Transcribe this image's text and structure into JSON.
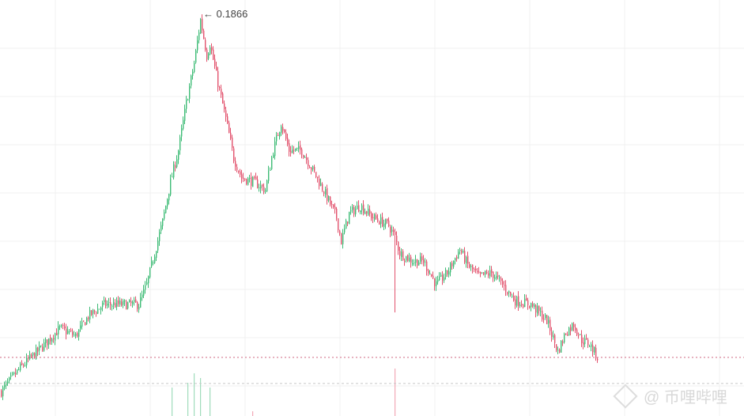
{
  "chart_data": {
    "type": "candlestick",
    "title": "",
    "xlabel": "",
    "ylabel": "",
    "ylim": [
      0.0105,
      0.1936
    ],
    "grid": true,
    "max_label": "← 0.1866",
    "max_value": 0.1866,
    "current_price_line": 0.0363,
    "secondary_price_line": 0.0248,
    "key_closes": [
      [
        0,
        0.0213
      ],
      [
        12,
        0.0317
      ],
      [
        25,
        0.0404
      ],
      [
        37,
        0.0491
      ],
      [
        47,
        0.0457
      ],
      [
        55,
        0.0544
      ],
      [
        65,
        0.0596
      ],
      [
        75,
        0.0596
      ],
      [
        87,
        0.0596
      ],
      [
        92,
        0.0683
      ],
      [
        97,
        0.0822
      ],
      [
        102,
        0.0961
      ],
      [
        107,
        0.1135
      ],
      [
        112,
        0.1274
      ],
      [
        117,
        0.1483
      ],
      [
        122,
        0.1657
      ],
      [
        126,
        0.1849
      ],
      [
        130,
        0.1692
      ],
      [
        132,
        0.1744
      ],
      [
        137,
        0.157
      ],
      [
        142,
        0.1414
      ],
      [
        147,
        0.124
      ],
      [
        152,
        0.1153
      ],
      [
        160,
        0.1135
      ],
      [
        167,
        0.11
      ],
      [
        172,
        0.1274
      ],
      [
        177,
        0.1396
      ],
      [
        182,
        0.1274
      ],
      [
        190,
        0.1274
      ],
      [
        197,
        0.1187
      ],
      [
        205,
        0.1083
      ],
      [
        212,
        0.0979
      ],
      [
        215,
        0.0874
      ],
      [
        220,
        0.0996
      ],
      [
        227,
        0.1031
      ],
      [
        235,
        0.0979
      ],
      [
        245,
        0.0944
      ],
      [
        249,
        0.0892
      ],
      [
        252,
        0.0822
      ],
      [
        260,
        0.0787
      ],
      [
        267,
        0.0787
      ],
      [
        275,
        0.0683
      ],
      [
        282,
        0.0735
      ],
      [
        290,
        0.0839
      ],
      [
        295,
        0.077
      ],
      [
        302,
        0.0718
      ],
      [
        310,
        0.0735
      ],
      [
        317,
        0.0683
      ],
      [
        325,
        0.0613
      ],
      [
        335,
        0.0596
      ],
      [
        345,
        0.0526
      ],
      [
        352,
        0.0387
      ],
      [
        357,
        0.0474
      ],
      [
        362,
        0.0509
      ],
      [
        367,
        0.0439
      ],
      [
        372,
        0.0422
      ],
      [
        377,
        0.0363
      ]
    ],
    "wick_events": [
      [
        249,
        0.0561
      ]
    ],
    "volume_spikes": [
      [
        108,
        0.6
      ],
      [
        118,
        0.7
      ],
      [
        122,
        0.9
      ],
      [
        126,
        0.8
      ],
      [
        132,
        0.6
      ],
      [
        159,
        0.1
      ],
      [
        249,
        1.0
      ]
    ]
  },
  "watermark": {
    "handle": "@ 币哩哔哩"
  }
}
